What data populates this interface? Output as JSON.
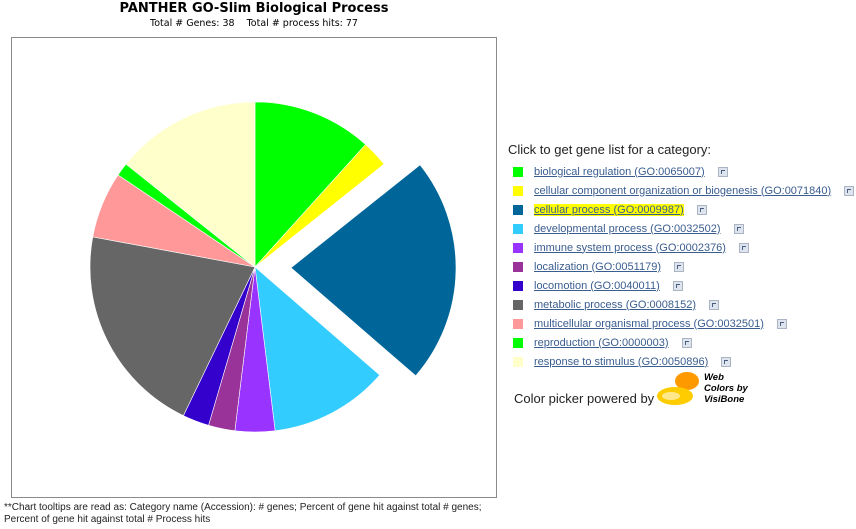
{
  "chart_data": {
    "type": "pie",
    "title": "PANTHER GO-Slim Biological Process",
    "subtitle": "Total # Genes: 38    Total # process hits: 77",
    "exploded_slice": "cellular process (GO:0009987)",
    "slices": [
      {
        "label": "biological regulation (GO:0065007)",
        "color": "#00ff00",
        "percent": 11.7
      },
      {
        "label": "cellular component organization or biogenesis (GO:0071840)",
        "color": "#ffff00",
        "percent": 2.6
      },
      {
        "label": "cellular process (GO:0009987)",
        "color": "#006699",
        "percent": 22.1
      },
      {
        "label": "developmental process (GO:0032502)",
        "color": "#33ccff",
        "percent": 11.7
      },
      {
        "label": "immune system process (GO:0002376)",
        "color": "#9933ff",
        "percent": 3.9
      },
      {
        "label": "localization (GO:0051179)",
        "color": "#993399",
        "percent": 2.6
      },
      {
        "label": "locomotion (GO:0040011)",
        "color": "#3300cc",
        "percent": 2.6
      },
      {
        "label": "metabolic process (GO:0008152)",
        "color": "#666666",
        "percent": 20.8
      },
      {
        "label": "multicellular organismal process (GO:0032501)",
        "color": "#ff9999",
        "percent": 6.5
      },
      {
        "label": "reproduction (GO:0000003)",
        "color": "#00ff00",
        "percent": 1.3
      },
      {
        "label": "response to stimulus (GO:0050896)",
        "color": "#ffffcc",
        "percent": 14.3
      }
    ]
  },
  "legend": {
    "heading": "Click to get gene list for a category:",
    "highlighted": "cellular process (GO:0009987)",
    "drill_icon": "drill-down-icon"
  },
  "footnote": {
    "line1": "**Chart tooltips are read as: Category name (Accession): # genes; Percent of gene hit against total # genes;",
    "line2": "Percent of gene hit against total # Process hits"
  },
  "color_picker": {
    "text": "Color picker powered by",
    "logo_line1": "Web",
    "logo_line2": "Colors by",
    "logo_line3": "VisiBone",
    "logo_colors": [
      "#ff9900",
      "#ffcc00"
    ]
  }
}
